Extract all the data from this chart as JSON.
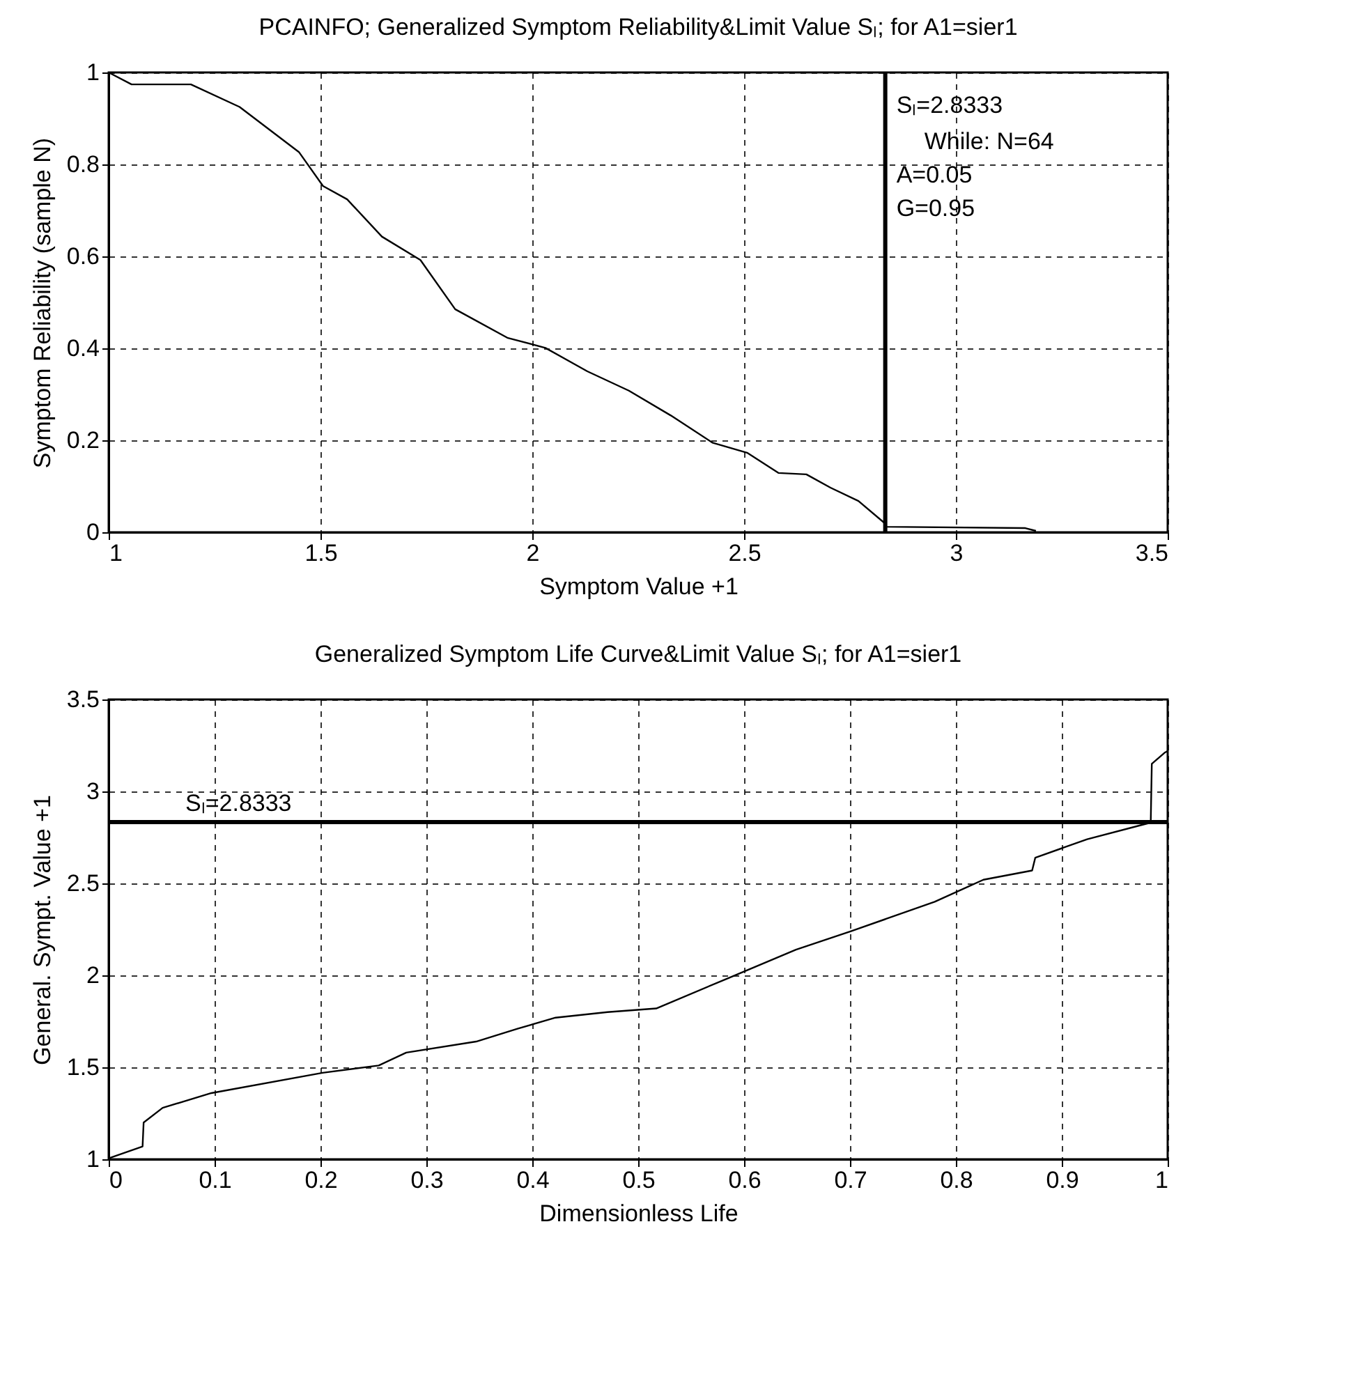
{
  "chart_data": [
    {
      "type": "line",
      "title": "PCAINFO; Generalized Symptom Reliability&Limit Value Sₗ; for A1=sier1",
      "xlabel": "Symptom Value +1",
      "ylabel": "Symptom Reliability (sample N)",
      "x": [
        1,
        1.054,
        1.194,
        1.309,
        1.449,
        1.506,
        1.563,
        1.645,
        1.736,
        1.818,
        1.941,
        2.031,
        2.13,
        2.228,
        2.327,
        2.425,
        2.507,
        2.581,
        2.647,
        2.704,
        2.77,
        2.833,
        2.836,
        3.164,
        3.189
      ],
      "series": [
        {
          "color": "#000000",
          "values": [
            1,
            0.974,
            0.974,
            0.925,
            0.827,
            0.753,
            0.724,
            0.643,
            0.592,
            0.485,
            0.423,
            0.401,
            0.35,
            0.308,
            0.254,
            0.195,
            0.173,
            0.129,
            0.126,
            0.097,
            0.068,
            0.019,
            0.012,
            0.009,
            0.003
          ]
        }
      ],
      "xlim": [
        1,
        3.5
      ],
      "xticks": [
        1,
        1.5,
        2,
        2.5,
        3,
        3.5
      ],
      "ylim": [
        0,
        1
      ],
      "yticks": [
        0,
        0.2,
        0.4,
        0.6,
        0.8,
        1
      ],
      "grid": true,
      "ref_lines": [
        {
          "axis": "x",
          "value": 2.8333,
          "label": "Sₗ=2.8333",
          "color": "#000000"
        }
      ],
      "annotations": [
        "While: N=64",
        "A=0.05",
        "G=0.95"
      ]
    },
    {
      "type": "line",
      "title": "Generalized Symptom Life Curve&Limit Value Sₗ; for A1=sier1",
      "xlabel": "Dimensionless Life",
      "ylabel": "General. Sympt. Value +1",
      "x": [
        0,
        0.032,
        0.033,
        0.051,
        0.097,
        0.202,
        0.255,
        0.281,
        0.347,
        0.386,
        0.422,
        0.471,
        0.517,
        0.583,
        0.649,
        0.701,
        0.78,
        0.826,
        0.872,
        0.875,
        0.924,
        0.977,
        0.984,
        0.985,
        0.997,
        1
      ],
      "series": [
        {
          "color": "#000000",
          "values": [
            1.005,
            1.07,
            1.2,
            1.28,
            1.36,
            1.47,
            1.51,
            1.58,
            1.64,
            1.71,
            1.77,
            1.8,
            1.82,
            1.98,
            2.14,
            2.24,
            2.4,
            2.52,
            2.57,
            2.64,
            2.74,
            2.82,
            2.83,
            3.15,
            3.21,
            3.22
          ]
        }
      ],
      "xlim": [
        0,
        1
      ],
      "xticks": [
        0,
        0.1,
        0.2,
        0.3,
        0.4,
        0.5,
        0.6,
        0.7,
        0.8,
        0.9,
        1
      ],
      "ylim": [
        1,
        3.5
      ],
      "yticks": [
        1,
        1.5,
        2,
        2.5,
        3,
        3.5
      ],
      "grid": true,
      "ref_lines": [
        {
          "axis": "y",
          "value": 2.8333,
          "label": "Sₗ=2.8333",
          "color": "#000000"
        }
      ]
    }
  ]
}
